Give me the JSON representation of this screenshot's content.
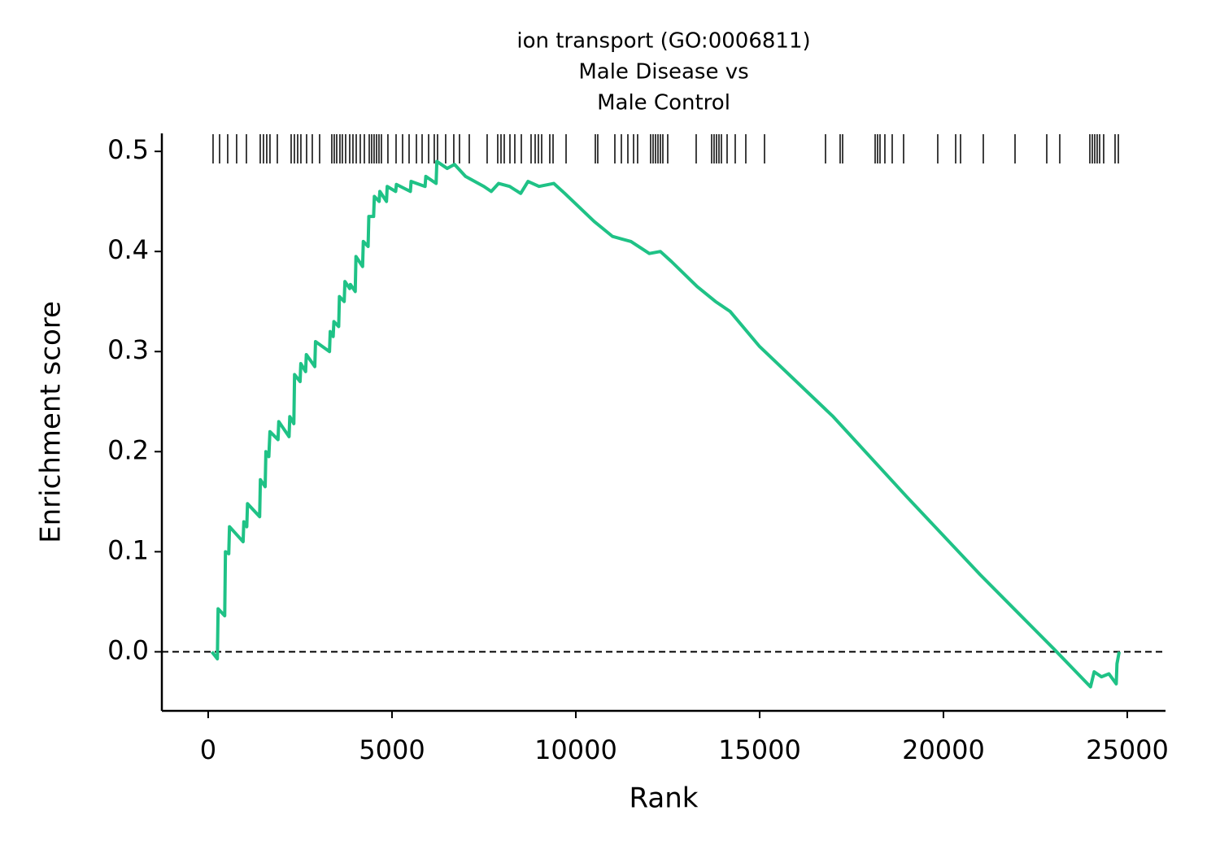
{
  "chart_data": {
    "type": "line",
    "title_lines": [
      "ion transport (GO:0006811)",
      "Male Disease vs",
      "Male Control"
    ],
    "x_label": "Rank",
    "y_label": "Enrichment score",
    "xlim": [
      -1260,
      26040
    ],
    "ylim": [
      -0.059,
      0.518
    ],
    "xticks": [
      0,
      5000,
      10000,
      15000,
      20000,
      25000
    ],
    "yticks": [
      {
        "value": 0,
        "label": "0.0"
      },
      0.1,
      0.2,
      0.3,
      0.4,
      0.5
    ],
    "reference_line": 0,
    "line": {
      "color": "#1fc286",
      "x": [
        100,
        250,
        270,
        450,
        470,
        560,
        580,
        950,
        970,
        1050,
        1070,
        1400,
        1420,
        1550,
        1570,
        1650,
        1680,
        1900,
        1920,
        2200,
        2220,
        2330,
        2350,
        2500,
        2520,
        2650,
        2670,
        2900,
        2920,
        3300,
        3320,
        3400,
        3420,
        3550,
        3570,
        3700,
        3720,
        3850,
        3870,
        4000,
        4020,
        4200,
        4220,
        4350,
        4370,
        4500,
        4520,
        4650,
        4670,
        4850,
        4870,
        5100,
        5120,
        5500,
        5520,
        5900,
        5920,
        6200,
        6220,
        6500,
        6700,
        7000,
        7500,
        7700,
        7900,
        8200,
        8500,
        8700,
        9000,
        9400,
        9700,
        10500,
        11000,
        11500,
        12000,
        12300,
        12600,
        13300,
        13800,
        14200,
        15000,
        17000,
        19000,
        21000,
        22000,
        23000,
        24000,
        24100,
        24300,
        24500,
        24700,
        24720,
        24780
      ],
      "y": [
        0,
        -0.007,
        0.043,
        0.036,
        0.1,
        0.098,
        0.125,
        0.11,
        0.13,
        0.125,
        0.148,
        0.135,
        0.172,
        0.165,
        0.2,
        0.195,
        0.22,
        0.212,
        0.23,
        0.215,
        0.235,
        0.228,
        0.277,
        0.27,
        0.288,
        0.28,
        0.297,
        0.285,
        0.31,
        0.3,
        0.32,
        0.315,
        0.33,
        0.325,
        0.355,
        0.35,
        0.37,
        0.363,
        0.367,
        0.36,
        0.395,
        0.385,
        0.41,
        0.405,
        0.435,
        0.435,
        0.455,
        0.45,
        0.46,
        0.45,
        0.465,
        0.46,
        0.467,
        0.46,
        0.47,
        0.465,
        0.475,
        0.468,
        0.49,
        0.483,
        0.487,
        0.475,
        0.465,
        0.46,
        0.468,
        0.465,
        0.458,
        0.47,
        0.465,
        0.468,
        0.458,
        0.43,
        0.415,
        0.41,
        0.398,
        0.4,
        0.39,
        0.365,
        0.35,
        0.34,
        0.305,
        0.235,
        0.155,
        0.077,
        0.04,
        0.003,
        -0.035,
        -0.02,
        -0.025,
        -0.022,
        -0.032,
        -0.012,
        0
      ]
    },
    "hits": {
      "color": "#000000",
      "x": [
        133,
        310,
        531,
        774,
        1040,
        1416,
        1504,
        1593,
        1681,
        1881,
        2257,
        2345,
        2434,
        2522,
        2677,
        2832,
        3031,
        3363,
        3429,
        3496,
        3584,
        3650,
        3739,
        3850,
        3938,
        4027,
        4137,
        4248,
        4381,
        4447,
        4513,
        4580,
        4646,
        4712,
        4889,
        5111,
        5288,
        5465,
        5664,
        5819,
        5996,
        6150,
        6239,
        6460,
        6681,
        6836,
        7102,
        7588,
        7876,
        7965,
        8053,
        8208,
        8341,
        8518,
        8783,
        8894,
        8982,
        9071,
        9292,
        9381,
        9735,
        10531,
        10597,
        11062,
        11239,
        11416,
        11571,
        11681,
        12035,
        12102,
        12168,
        12235,
        12301,
        12367,
        12500,
        13274,
        13695,
        13761,
        13827,
        13894,
        13960,
        14115,
        14336,
        14624,
        15133,
        16792,
        17190,
        17257,
        18142,
        18208,
        18274,
        18407,
        18606,
        18916,
        19845,
        20332,
        20465,
        21084,
        21947,
        22810,
        23164,
        23982,
        24049,
        24115,
        24181,
        24248,
        24358,
        24668,
        24757
      ]
    }
  }
}
